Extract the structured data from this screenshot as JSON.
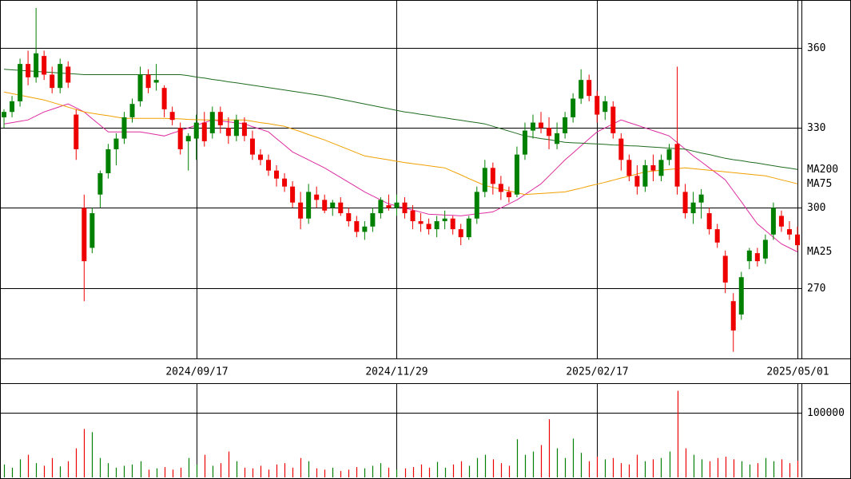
{
  "chart_data": [
    {
      "type": "candlestick",
      "categories": [
        null,
        null,
        null,
        null,
        null,
        null,
        null,
        null,
        null,
        null,
        null,
        null,
        null,
        null,
        null,
        null,
        null,
        null,
        null,
        null,
        null,
        null,
        null,
        null,
        "2024/09/17",
        null,
        null,
        null,
        null,
        null,
        null,
        null,
        null,
        null,
        null,
        null,
        null,
        null,
        null,
        null,
        null,
        null,
        null,
        null,
        null,
        null,
        null,
        null,
        null,
        "2024/11/29",
        null,
        null,
        null,
        null,
        null,
        null,
        null,
        null,
        null,
        null,
        null,
        null,
        null,
        null,
        null,
        null,
        null,
        null,
        null,
        null,
        null,
        null,
        null,
        null,
        "2025/02/17",
        null,
        null,
        null,
        null,
        null,
        null,
        null,
        null,
        null,
        null,
        null,
        null,
        null,
        null,
        null,
        null,
        null,
        null,
        null,
        null,
        null,
        null,
        null,
        null,
        "2025/05/01"
      ],
      "open": [
        334,
        336,
        340,
        354,
        349,
        357,
        350,
        345,
        353,
        335,
        300,
        285,
        305,
        313,
        322,
        326,
        334,
        340,
        350,
        347,
        345,
        336,
        330,
        325,
        326,
        332,
        328,
        336,
        330,
        327,
        332,
        326,
        320,
        318,
        314,
        311,
        308,
        302,
        296,
        305,
        303,
        300,
        302,
        298,
        295,
        291,
        293,
        298,
        301,
        300,
        302,
        299,
        295,
        294,
        292,
        295,
        296,
        292,
        289,
        296,
        306,
        315,
        309,
        306,
        305,
        320,
        329,
        332,
        330,
        324,
        328,
        334,
        341,
        348,
        342,
        336,
        338,
        326,
        318,
        312,
        308,
        316,
        312,
        318,
        324,
        306,
        298,
        302,
        298,
        292,
        282,
        265,
        260,
        280,
        283,
        281,
        290,
        297,
        292,
        290
      ],
      "high": [
        337,
        342,
        356,
        359,
        375,
        359,
        353,
        356,
        355,
        337,
        305,
        300,
        314,
        324,
        328,
        336,
        341,
        353,
        352,
        354,
        346,
        338,
        332,
        328,
        335,
        336,
        338,
        338,
        334,
        335,
        334,
        329,
        322,
        320,
        316,
        313,
        310,
        306,
        309,
        308,
        305,
        303,
        304,
        300,
        297,
        295,
        300,
        304,
        305,
        305,
        304,
        301,
        298,
        296,
        297,
        299,
        297,
        294,
        297,
        308,
        318,
        317,
        312,
        308,
        323,
        332,
        335,
        336,
        334,
        332,
        336,
        343,
        352,
        350,
        344,
        342,
        340,
        328,
        320,
        316,
        318,
        320,
        320,
        324,
        353,
        309,
        306,
        307,
        300,
        294,
        284,
        268,
        276,
        285,
        285,
        290,
        302,
        299,
        295,
        293
      ],
      "low": [
        330,
        334,
        338,
        346,
        347,
        348,
        343,
        343,
        345,
        318,
        265,
        283,
        300,
        311,
        316,
        324,
        332,
        338,
        343,
        344,
        334,
        331,
        320,
        314,
        318,
        323,
        326,
        328,
        324,
        325,
        325,
        318,
        316,
        312,
        308,
        306,
        300,
        292,
        294,
        300,
        298,
        297,
        297,
        293,
        289,
        288,
        291,
        296,
        299,
        297,
        296,
        292,
        291,
        290,
        289,
        292,
        290,
        286,
        288,
        294,
        304,
        305,
        303,
        302,
        304,
        318,
        326,
        328,
        322,
        322,
        326,
        332,
        339,
        340,
        332,
        333,
        326,
        314,
        310,
        305,
        306,
        310,
        310,
        316,
        305,
        296,
        294,
        296,
        290,
        285,
        268,
        246,
        258,
        277,
        278,
        279,
        288,
        291,
        288,
        284
      ],
      "close": [
        336,
        340,
        354,
        349,
        358,
        350,
        345,
        354,
        347,
        322,
        280,
        298,
        313,
        322,
        326,
        334,
        339,
        350,
        345,
        348,
        337,
        333,
        322,
        327,
        332,
        325,
        336,
        331,
        327,
        333,
        327,
        320,
        318,
        314,
        311,
        308,
        302,
        296,
        306,
        303,
        299,
        302,
        298,
        295,
        291,
        293,
        298,
        303,
        300,
        302,
        298,
        295,
        294,
        292,
        295,
        296,
        292,
        289,
        296,
        306,
        315,
        309,
        306,
        304,
        320,
        329,
        332,
        330,
        327,
        328,
        334,
        341,
        348,
        342,
        335,
        340,
        328,
        318,
        312,
        308,
        316,
        314,
        318,
        322,
        308,
        298,
        302,
        305,
        292,
        287,
        272,
        254,
        274,
        284,
        280,
        288,
        300,
        293,
        290,
        286
      ],
      "up_color": "#008000",
      "down_color": "#ee0000",
      "series": [
        {
          "name": "MA25",
          "color": "#dd2ca0",
          "values": [
            331.5,
            332,
            332.5,
            333,
            334.5,
            336,
            337,
            338,
            339,
            337.5,
            336,
            333.5,
            331,
            328.5,
            328.5,
            328.5,
            328.5,
            328.5,
            328,
            327.5,
            327,
            328,
            329,
            330,
            331,
            332,
            333,
            332.6,
            332.3,
            331.9,
            331.5,
            330.5,
            329.5,
            328.5,
            326,
            323.5,
            321,
            319.5,
            318,
            316.5,
            315,
            313.2,
            311.4,
            309.6,
            307.8,
            306,
            304.5,
            303,
            301.5,
            300.7,
            299.9,
            299.2,
            298.4,
            297.6,
            297.5,
            297.3,
            297.2,
            297,
            297.4,
            297.8,
            298.1,
            298.5,
            300,
            301.5,
            303,
            305,
            307,
            309,
            312,
            315,
            318,
            320.6,
            323.3,
            325.9,
            328.5,
            330,
            331.5,
            333,
            332,
            331,
            330,
            329,
            328,
            327,
            324.5,
            322,
            319.5,
            317.3,
            315,
            312.8,
            310.5,
            306.4,
            302.3,
            298.1,
            294,
            291.5,
            289,
            286.5,
            285,
            283.5
          ]
        },
        {
          "name": "MA75",
          "color": "#f0a000",
          "values": [
            343.5,
            342.9,
            342.3,
            341.7,
            341.1,
            340.5,
            339.6,
            338.7,
            337.8,
            336.9,
            336,
            335.5,
            335,
            334.6,
            334.1,
            333.6,
            333.6,
            333.6,
            333.6,
            333.6,
            333.6,
            333.5,
            333.4,
            333.2,
            333.1,
            333,
            333,
            333,
            333,
            333,
            333,
            332.5,
            332,
            331.6,
            331.1,
            330.6,
            329.6,
            328.6,
            327.5,
            326.5,
            325.5,
            324.3,
            323.1,
            321.9,
            320.7,
            319.5,
            319,
            318.5,
            318,
            317.5,
            317,
            316.6,
            316.2,
            315.8,
            315.4,
            315,
            313.7,
            312.4,
            311,
            309.7,
            308.4,
            307.7,
            307,
            306.4,
            305.7,
            305,
            305.2,
            305.4,
            305.6,
            305.8,
            306,
            306.7,
            307.4,
            308.2,
            308.9,
            309.6,
            310.4,
            311.2,
            311.9,
            312.7,
            313.5,
            313.8,
            314.1,
            314.4,
            314.7,
            315,
            314.7,
            314.4,
            314.1,
            313.8,
            313.5,
            313.2,
            312.9,
            312.6,
            312.3,
            312,
            311.3,
            310.5,
            309.8,
            309
          ]
        },
        {
          "name": "MA200",
          "color": "#1f6b1f",
          "values": [
            352,
            351.8,
            351.6,
            351.4,
            351.2,
            351,
            350.8,
            350.6,
            350.4,
            350.2,
            350,
            350,
            350,
            350,
            350,
            350,
            350,
            350,
            350,
            350,
            350,
            350,
            350,
            349.6,
            349.1,
            348.7,
            348.2,
            347.8,
            347.3,
            346.9,
            346.5,
            346,
            345.6,
            345.1,
            344.7,
            344.2,
            343.8,
            343.3,
            342.9,
            342.4,
            342,
            341.4,
            340.8,
            340.2,
            339.6,
            339,
            338.4,
            337.8,
            337.2,
            336.6,
            336,
            335.6,
            335.1,
            334.7,
            334.2,
            333.8,
            333.3,
            332.9,
            332.4,
            332,
            331.5,
            330.6,
            329.7,
            328.8,
            327.9,
            327,
            326.5,
            326,
            325.6,
            325.1,
            324.6,
            324.4,
            324.3,
            324.1,
            324,
            323.8,
            323.6,
            323.5,
            323.3,
            323.2,
            323,
            322.8,
            322.6,
            322.4,
            322.2,
            322,
            321.3,
            320.6,
            320,
            319.3,
            318.6,
            318.1,
            317.7,
            317.2,
            316.8,
            316.3,
            315.8,
            315.3,
            314.9,
            314.4
          ]
        }
      ],
      "ylim": [
        243.5,
        378
      ],
      "yticks": [
        270,
        300,
        330,
        360
      ],
      "grid": true
    },
    {
      "type": "bar",
      "values": [
        20000,
        15000,
        28000,
        35000,
        22000,
        18000,
        30000,
        17000,
        25000,
        45000,
        75000,
        70000,
        30000,
        22000,
        15000,
        18000,
        20000,
        25000,
        12000,
        14000,
        16000,
        12000,
        15000,
        30000,
        20000,
        35000,
        18000,
        22000,
        40000,
        25000,
        15000,
        14000,
        18000,
        12000,
        20000,
        22000,
        15000,
        30000,
        25000,
        14000,
        12000,
        15000,
        10000,
        12000,
        16000,
        14000,
        18000,
        22000,
        15000,
        12000,
        14000,
        16000,
        20000,
        15000,
        24000,
        15000,
        20000,
        25000,
        18000,
        30000,
        35000,
        28000,
        22000,
        18000,
        59000,
        35000,
        40000,
        50000,
        90000,
        45000,
        30000,
        60000,
        38000,
        25000,
        32000,
        28000,
        30000,
        22000,
        20000,
        35000,
        25000,
        28000,
        30000,
        40000,
        134000,
        45000,
        35000,
        28000,
        25000,
        30000,
        32000,
        28000,
        25000,
        20000,
        22000,
        30000,
        25000,
        28000,
        22000,
        26000
      ],
      "ylim": [
        0,
        145700
      ],
      "yticks": [
        100000
      ],
      "grid": true
    }
  ]
}
